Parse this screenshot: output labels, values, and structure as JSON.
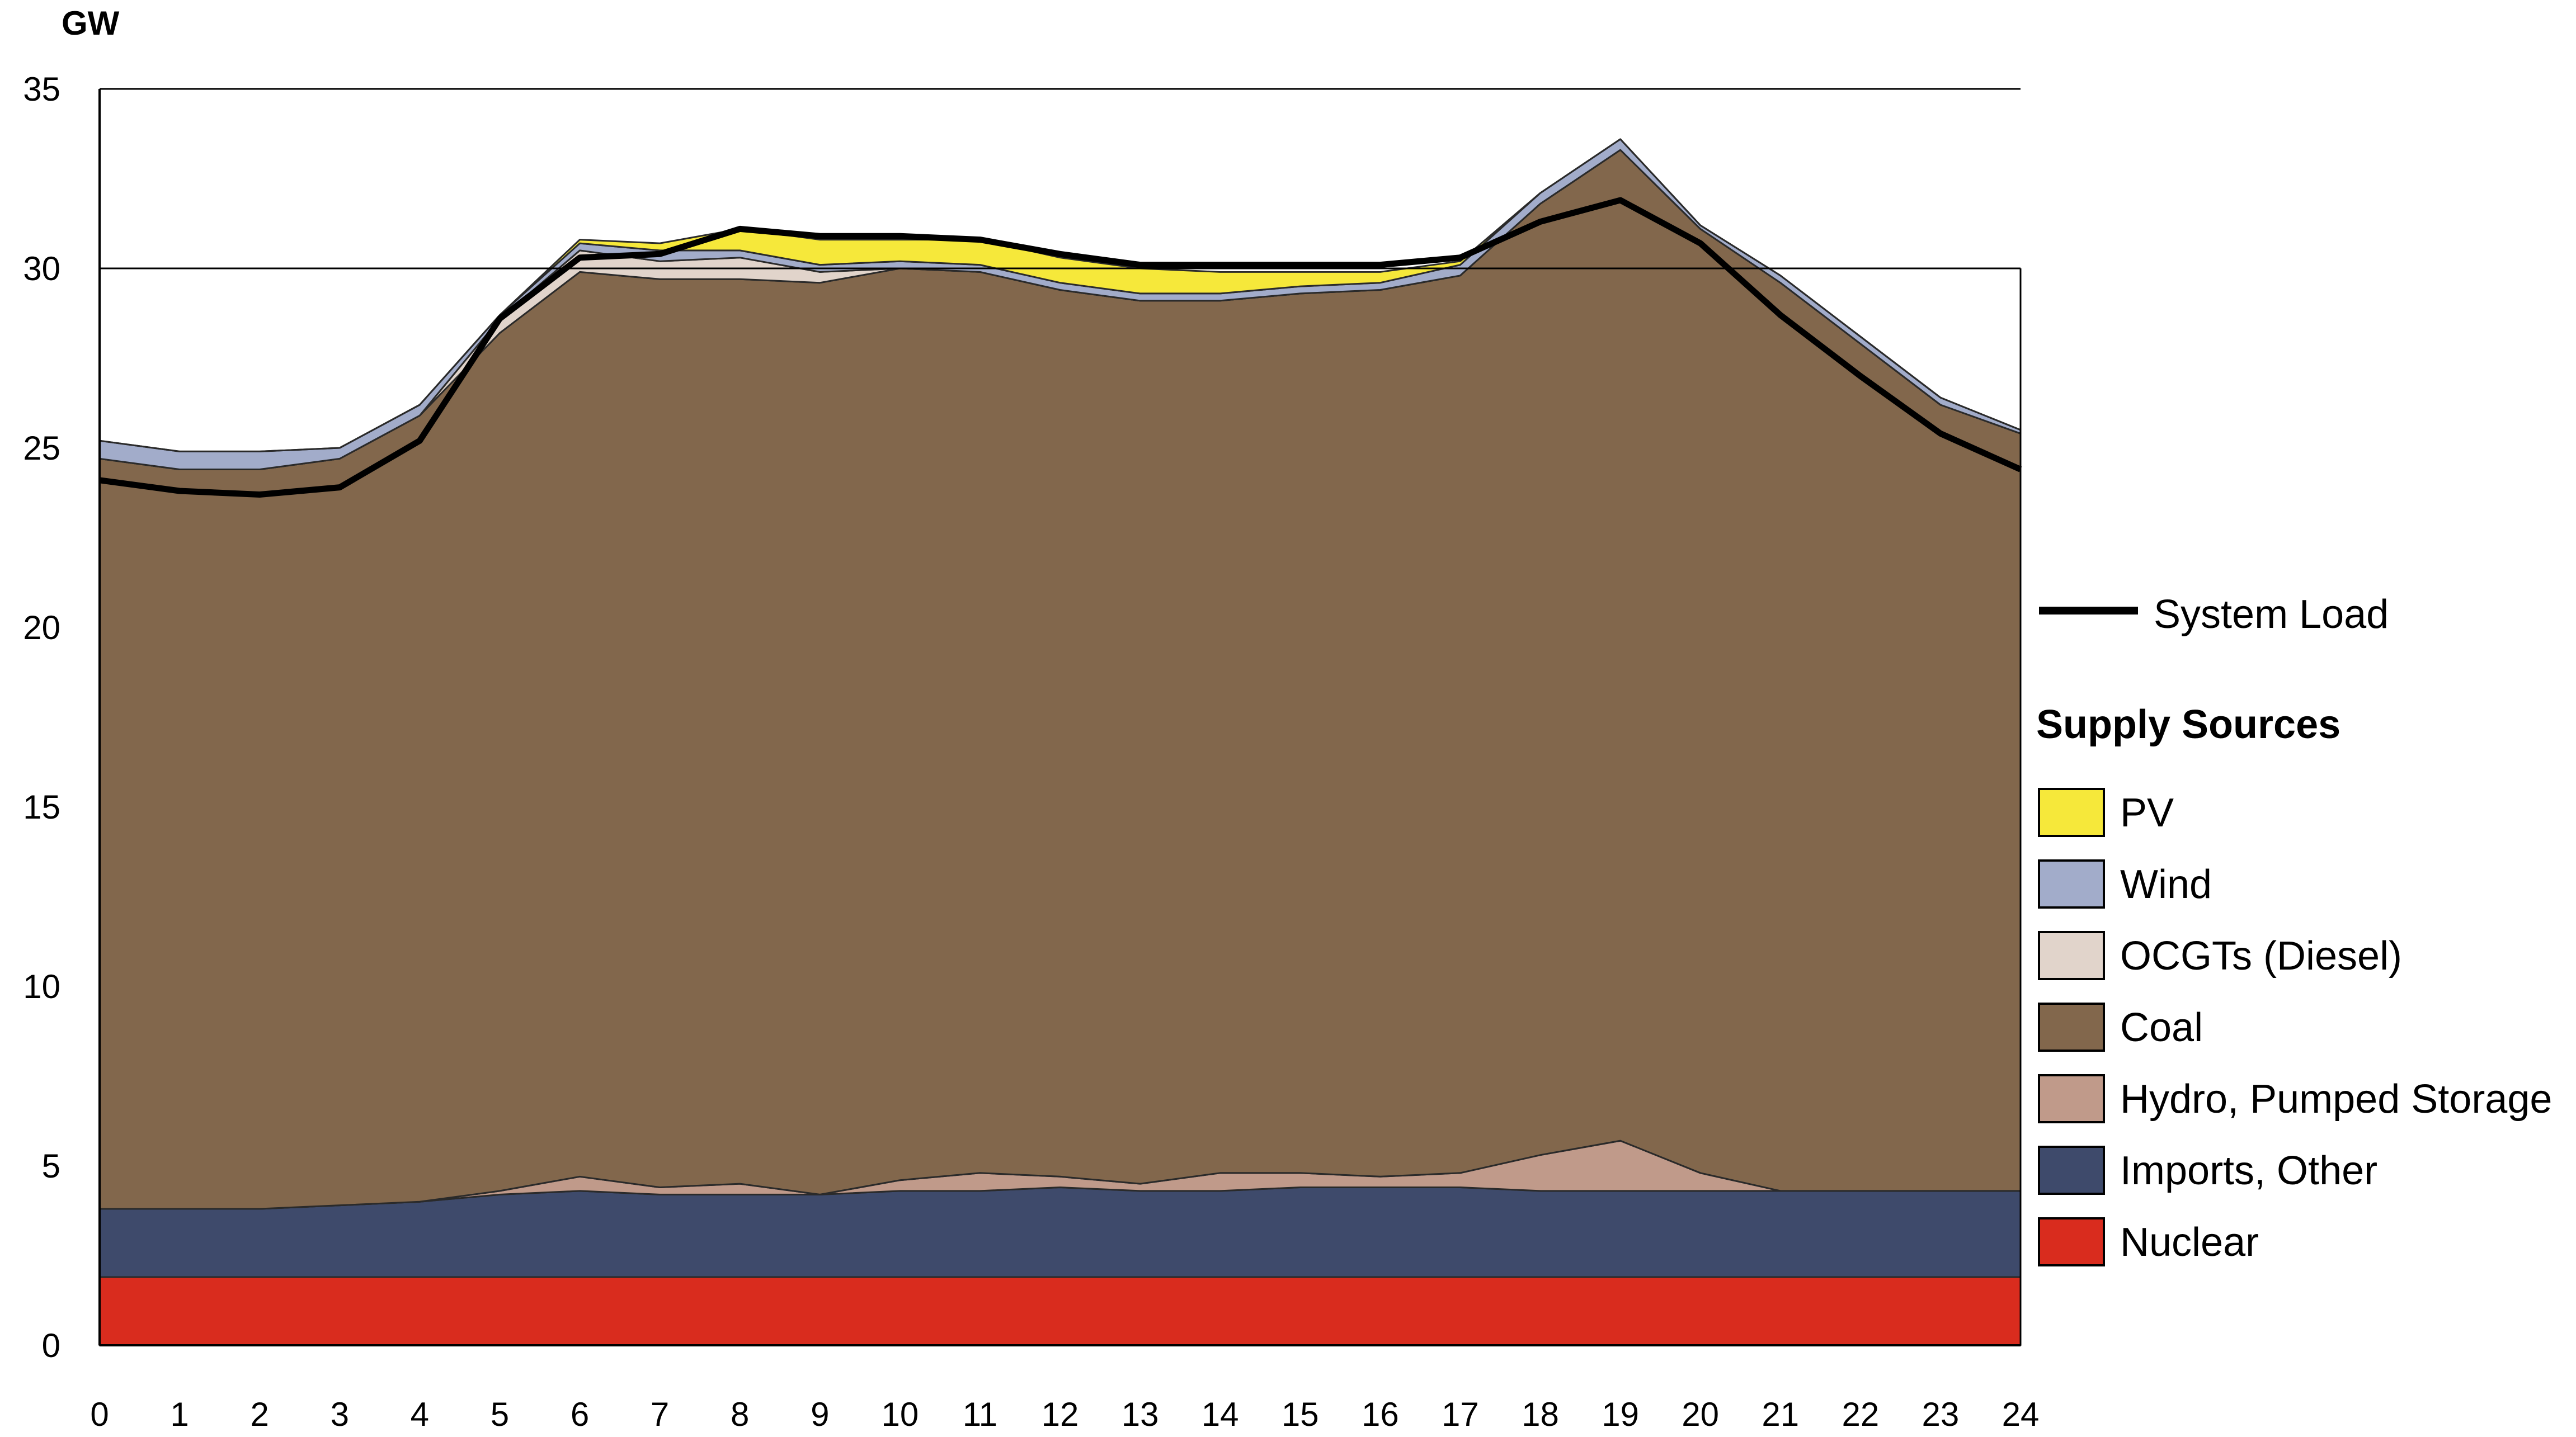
{
  "chart_data": {
    "type": "area",
    "stacked": true,
    "unit_label": "GW",
    "title": "",
    "xlabel": "",
    "ylabel": "GW",
    "xlim": [
      0,
      24
    ],
    "ylim": [
      0,
      35
    ],
    "x": [
      0,
      1,
      2,
      3,
      4,
      5,
      6,
      7,
      8,
      9,
      10,
      11,
      12,
      13,
      14,
      15,
      16,
      17,
      18,
      19,
      20,
      21,
      22,
      23,
      24
    ],
    "x_ticks": [
      "0",
      "1",
      "2",
      "3",
      "4",
      "5",
      "6",
      "7",
      "8",
      "9",
      "10",
      "11",
      "12",
      "13",
      "14",
      "15",
      "16",
      "17",
      "18",
      "19",
      "20",
      "21",
      "22",
      "23",
      "24"
    ],
    "y_ticks": [
      "0",
      "5",
      "10",
      "15",
      "20",
      "25",
      "30",
      "35"
    ],
    "grid": "horizontal at 30 and 35",
    "legend_position": "right",
    "legend_heading": "Supply Sources",
    "load_series": {
      "name": "System Load",
      "color": "#000000",
      "values": [
        24.1,
        23.8,
        23.7,
        23.9,
        25.2,
        28.6,
        30.3,
        30.4,
        31.1,
        30.9,
        30.9,
        30.8,
        30.4,
        30.1,
        30.1,
        30.1,
        30.1,
        30.3,
        31.3,
        31.9,
        30.7,
        28.7,
        27.0,
        25.4,
        24.4
      ]
    },
    "series": [
      {
        "name": "Nuclear",
        "color": "#d92c1e",
        "values": [
          1.9,
          1.9,
          1.9,
          1.9,
          1.9,
          1.9,
          1.9,
          1.9,
          1.9,
          1.9,
          1.9,
          1.9,
          1.9,
          1.9,
          1.9,
          1.9,
          1.9,
          1.9,
          1.9,
          1.9,
          1.9,
          1.9,
          1.9,
          1.9,
          1.9
        ]
      },
      {
        "name": "Imports, Other",
        "color": "#3e4a6b",
        "values": [
          1.9,
          1.9,
          1.9,
          2.0,
          2.1,
          2.3,
          2.4,
          2.3,
          2.3,
          2.3,
          2.4,
          2.4,
          2.5,
          2.4,
          2.4,
          2.5,
          2.5,
          2.5,
          2.4,
          2.4,
          2.4,
          2.4,
          2.4,
          2.4,
          2.4
        ]
      },
      {
        "name": "Hydro, Pumped Storage",
        "color": "#c09a8a",
        "values": [
          0,
          0,
          0,
          0,
          0,
          0.1,
          0.4,
          0.2,
          0.3,
          0,
          0.3,
          0.5,
          0.3,
          0.2,
          0.5,
          0.4,
          0.3,
          0.4,
          1.0,
          1.4,
          0.5,
          0,
          0,
          0,
          0
        ]
      },
      {
        "name": "Coal",
        "color": "#82674c",
        "values": [
          20.9,
          20.6,
          20.6,
          20.8,
          21.9,
          23.9,
          25.2,
          25.3,
          25.2,
          25.4,
          25.4,
          25.1,
          24.7,
          24.6,
          24.3,
          24.5,
          24.7,
          25.0,
          26.5,
          27.6,
          26.3,
          25.3,
          23.6,
          21.9,
          21.1
        ]
      },
      {
        "name": "OCGTs (Diesel)",
        "color": "#e1d4cb",
        "values": [
          0,
          0,
          0,
          0,
          0,
          0.4,
          0.6,
          0.5,
          0.6,
          0.3,
          0,
          0,
          0,
          0,
          0,
          0,
          0,
          0,
          0,
          0,
          0,
          0,
          0,
          0,
          0
        ]
      },
      {
        "name": "Wind",
        "color": "#a2acca",
        "values": [
          0.5,
          0.5,
          0.5,
          0.3,
          0.3,
          0.1,
          0.2,
          0.3,
          0.2,
          0.2,
          0.2,
          0.2,
          0.2,
          0.2,
          0.2,
          0.2,
          0.2,
          0.3,
          0.3,
          0.3,
          0.1,
          0.2,
          0.2,
          0.2,
          0.1
        ]
      },
      {
        "name": "PV",
        "color": "#f6e83a",
        "values": [
          0,
          0,
          0,
          0,
          0,
          0,
          0.1,
          0.2,
          0.6,
          0.7,
          0.6,
          0.7,
          0.7,
          0.7,
          0.6,
          0.4,
          0.3,
          0.1,
          0,
          0,
          0,
          0,
          0,
          0,
          0
        ]
      }
    ]
  }
}
